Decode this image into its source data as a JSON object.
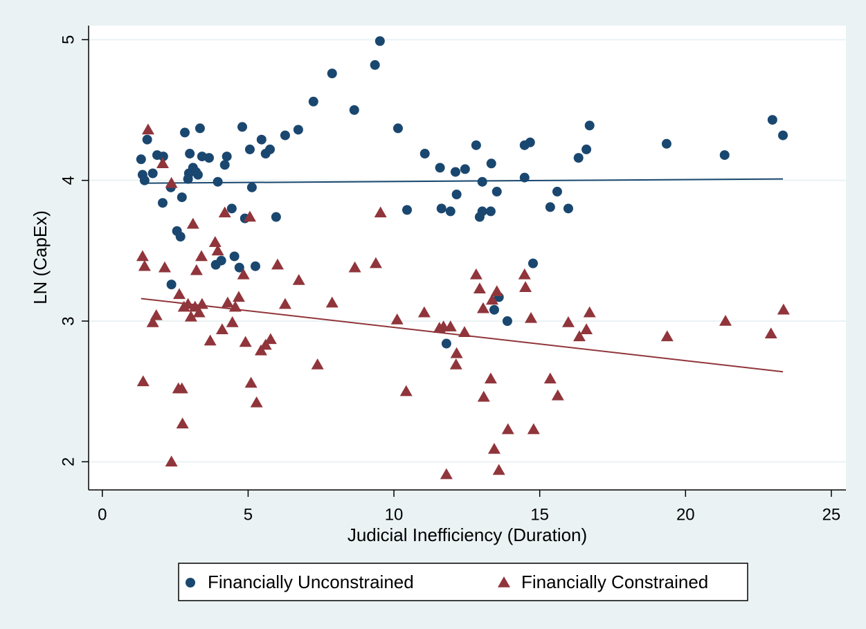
{
  "chart_data": {
    "type": "scatter",
    "xlabel": "Judicial Inefficiency (Duration)",
    "ylabel": "LN (CapEx)",
    "xlim": [
      -0.47,
      25.5
    ],
    "ylim": [
      1.8,
      5.1
    ],
    "xticks": [
      0,
      5,
      10,
      15,
      20,
      25
    ],
    "yticks": [
      2,
      3,
      4,
      5
    ],
    "grid": true,
    "legend": "bottom",
    "series": [
      {
        "name": "Financially Unconstrained",
        "color": "#1a476f",
        "marker": "circle",
        "x": [
          1.33,
          1.38,
          1.45,
          1.54,
          1.73,
          1.88,
          2.09,
          2.07,
          2.35,
          2.37,
          2.56,
          2.68,
          2.73,
          2.83,
          3.0,
          2.97,
          2.94,
          3.11,
          3.21,
          3.28,
          3.35,
          3.42,
          3.66,
          3.96,
          3.89,
          4.08,
          4.2,
          4.27,
          4.44,
          4.53,
          4.7,
          4.8,
          4.89,
          5.06,
          5.13,
          5.25,
          5.46,
          5.6,
          5.75,
          5.96,
          6.27,
          6.72,
          7.24,
          7.88,
          8.64,
          9.35,
          9.52,
          10.14,
          10.45,
          11.06,
          11.58,
          11.63,
          11.94,
          12.11,
          12.15,
          12.44,
          11.8,
          12.82,
          12.94,
          13.03,
          13.03,
          13.34,
          13.32,
          13.44,
          13.53,
          13.6,
          13.89,
          14.48,
          14.48,
          14.67,
          14.77,
          15.36,
          15.6,
          15.98,
          16.33,
          16.6,
          16.71,
          19.35,
          21.34,
          22.98,
          23.34
        ],
        "values": [
          4.15,
          4.04,
          4.0,
          4.29,
          4.05,
          4.18,
          4.17,
          3.84,
          3.95,
          3.26,
          3.64,
          3.6,
          3.88,
          4.34,
          4.19,
          4.05,
          4.01,
          4.09,
          4.06,
          4.04,
          4.37,
          4.17,
          4.16,
          3.99,
          3.4,
          3.43,
          4.11,
          4.17,
          3.8,
          3.46,
          3.38,
          4.38,
          3.73,
          4.22,
          3.95,
          3.39,
          4.29,
          4.19,
          4.22,
          3.74,
          4.32,
          4.36,
          4.56,
          4.76,
          4.5,
          4.82,
          4.99,
          4.37,
          3.79,
          4.19,
          4.09,
          3.8,
          3.78,
          4.06,
          3.9,
          4.08,
          2.84,
          4.25,
          3.74,
          3.99,
          3.78,
          4.12,
          3.78,
          3.08,
          3.92,
          3.17,
          3.0,
          4.25,
          4.02,
          4.27,
          3.41,
          3.81,
          3.92,
          3.8,
          4.16,
          4.22,
          4.39,
          4.26,
          4.18,
          4.43,
          4.32
        ]
      },
      {
        "name": "Financially Constrained",
        "color": "#90353b",
        "marker": "triangle",
        "x": [
          1.38,
          1.45,
          1.4,
          1.57,
          1.73,
          1.85,
          2.07,
          2.14,
          2.37,
          2.37,
          2.64,
          2.61,
          2.73,
          2.75,
          2.8,
          2.94,
          3.04,
          3.11,
          3.18,
          3.23,
          3.32,
          3.4,
          3.42,
          3.7,
          3.87,
          3.96,
          4.11,
          4.2,
          4.3,
          4.46,
          4.56,
          4.68,
          4.84,
          4.91,
          5.06,
          5.1,
          5.29,
          5.44,
          5.6,
          5.77,
          6.01,
          6.27,
          6.74,
          7.38,
          7.88,
          8.66,
          9.38,
          9.54,
          10.11,
          10.42,
          11.04,
          11.56,
          11.7,
          11.8,
          11.94,
          12.15,
          12.13,
          12.42,
          12.82,
          12.94,
          13.06,
          13.08,
          13.32,
          13.37,
          13.44,
          13.53,
          13.6,
          13.91,
          14.48,
          14.51,
          14.7,
          14.79,
          15.36,
          15.62,
          15.98,
          16.36,
          16.6,
          16.71,
          19.37,
          21.37,
          22.93,
          23.36
        ],
        "values": [
          3.46,
          3.39,
          2.57,
          4.36,
          2.99,
          3.04,
          4.12,
          3.38,
          3.98,
          2.0,
          3.19,
          2.52,
          2.52,
          2.27,
          3.1,
          3.12,
          3.03,
          3.69,
          3.1,
          3.36,
          3.06,
          3.46,
          3.12,
          2.86,
          3.56,
          3.5,
          2.94,
          3.77,
          3.13,
          2.99,
          3.1,
          3.17,
          3.33,
          2.85,
          3.74,
          2.56,
          2.42,
          2.79,
          2.83,
          2.87,
          3.4,
          3.12,
          3.29,
          2.69,
          3.13,
          3.38,
          3.41,
          3.77,
          3.01,
          2.5,
          3.06,
          2.95,
          2.96,
          1.91,
          2.96,
          2.77,
          2.69,
          2.92,
          3.33,
          3.23,
          3.09,
          2.46,
          2.59,
          3.15,
          2.09,
          3.21,
          1.94,
          2.23,
          3.33,
          3.24,
          3.02,
          2.23,
          2.59,
          2.47,
          2.99,
          2.89,
          2.94,
          3.06,
          2.89,
          3.0,
          2.91,
          3.08
        ]
      }
    ],
    "fit_lines": [
      {
        "color": "#1a476f",
        "x": [
          1.33,
          23.34
        ],
        "values": [
          3.98,
          4.01
        ]
      },
      {
        "color": "#90353b",
        "x": [
          1.33,
          23.34
        ],
        "values": [
          3.16,
          2.64
        ]
      }
    ]
  }
}
